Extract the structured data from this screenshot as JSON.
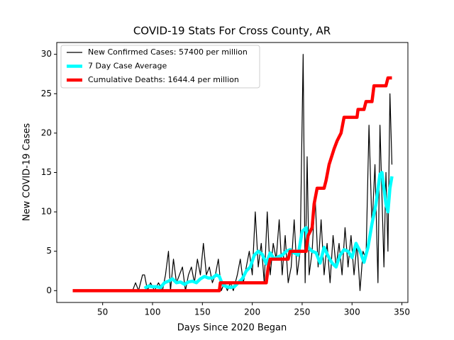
{
  "chart_data": {
    "type": "line",
    "title": "COVID-19 Stats For Cross County, AR",
    "xlabel": "Days Since 2020 Began",
    "ylabel": "New COVID-19 Cases",
    "xlim": [
      4,
      356
    ],
    "ylim": [
      -1.5,
      31.5
    ],
    "xticks": [
      50,
      100,
      150,
      200,
      250,
      300,
      350
    ],
    "yticks": [
      0,
      5,
      10,
      15,
      20,
      25,
      30
    ],
    "grid": false,
    "legend": "upper left",
    "series": [
      {
        "name": "New Confirmed Cases: 57400 per million",
        "color": "#000000",
        "x": [
          80,
          83,
          86,
          90,
          92,
          95,
          98,
          102,
          106,
          110,
          113,
          116,
          118,
          121,
          124,
          127,
          130,
          133,
          136,
          139,
          142,
          145,
          148,
          151,
          154,
          157,
          160,
          163,
          166,
          169,
          172,
          175,
          178,
          181,
          185,
          188,
          191,
          194,
          197,
          200,
          203,
          206,
          209,
          212,
          215,
          218,
          221,
          224,
          227,
          230,
          233,
          236,
          239,
          242,
          245,
          248,
          251,
          253,
          255,
          257,
          260,
          263,
          266,
          269,
          272,
          275,
          278,
          281,
          284,
          287,
          290,
          293,
          296,
          299,
          302,
          305,
          308,
          311,
          314,
          317,
          320,
          323,
          326,
          328,
          330,
          332,
          334,
          336,
          338,
          340
        ],
        "values": [
          0,
          1,
          0,
          2,
          2,
          0,
          1,
          0,
          1,
          0,
          2,
          5,
          0,
          4,
          1,
          2,
          3,
          0,
          2,
          3,
          1,
          4,
          2,
          6,
          2,
          3,
          1,
          2,
          4,
          0,
          1,
          0,
          1,
          0,
          2,
          4,
          1,
          3,
          5,
          2,
          10,
          3,
          6,
          1,
          10,
          2,
          6,
          4,
          9,
          2,
          7,
          1,
          3,
          9,
          2,
          5,
          30,
          1,
          17,
          2,
          5,
          12,
          3,
          9,
          2,
          6,
          1,
          7,
          3,
          6,
          2,
          8,
          3,
          7,
          2,
          6,
          0,
          5,
          4,
          21,
          8,
          16,
          1,
          21,
          12,
          3,
          15,
          5,
          25,
          16
        ]
      },
      {
        "name": "7 Day Case Average",
        "color": "#00ffff",
        "x": [
          92,
          96,
          100,
          104,
          108,
          112,
          116,
          120,
          124,
          128,
          132,
          136,
          140,
          144,
          148,
          152,
          156,
          160,
          164,
          167,
          170,
          174,
          178,
          182,
          186,
          190,
          194,
          198,
          202,
          206,
          210,
          214,
          218,
          222,
          226,
          230,
          234,
          238,
          242,
          246,
          250,
          254,
          256,
          260,
          264,
          268,
          272,
          276,
          280,
          284,
          288,
          292,
          296,
          300,
          304,
          308,
          312,
          316,
          320,
          324,
          328,
          330,
          332,
          334,
          336,
          338,
          340
        ],
        "values": [
          0.3,
          0.6,
          0.5,
          0.5,
          0.4,
          1,
          1.2,
          1.5,
          1,
          1.1,
          0.8,
          1.1,
          1.2,
          1,
          1.5,
          1.8,
          1.6,
          1.6,
          2,
          1.8,
          0.8,
          0.5,
          0.4,
          0.5,
          1,
          1.5,
          2.5,
          3,
          4.5,
          5,
          4.6,
          3.4,
          4.8,
          4,
          4.3,
          4.5,
          5,
          5.2,
          4.8,
          4.5,
          7.5,
          8,
          5.5,
          5,
          4.8,
          3.5,
          5.5,
          4.4,
          3.5,
          3,
          4.5,
          5.2,
          5,
          4.2,
          6,
          5,
          3.6,
          5.5,
          8.5,
          11,
          14.8,
          15,
          13,
          11,
          10,
          13,
          14.5
        ]
      },
      {
        "name": "Cumulative Deaths: 1644.4 per million",
        "color": "#ff0000",
        "x": [
          20,
          167,
          168,
          214,
          216,
          218,
          236,
          238,
          254,
          256,
          260,
          262,
          265,
          272,
          274,
          277,
          282,
          285,
          289,
          292,
          305,
          306,
          312,
          314,
          320,
          322,
          334,
          336,
          340
        ],
        "values": [
          0,
          0,
          1,
          1,
          3,
          4,
          4,
          5,
          5,
          7,
          8,
          11,
          13,
          13,
          14,
          16,
          18,
          19,
          20,
          22,
          22,
          23,
          23,
          24,
          24,
          26,
          26,
          27,
          27
        ]
      }
    ]
  }
}
